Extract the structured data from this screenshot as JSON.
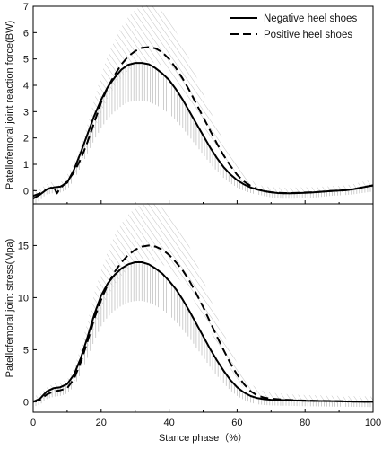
{
  "chart_data": [
    {
      "type": "line",
      "panel": "top",
      "ylabel": "Patellofemoral joint reaction force(BW)",
      "xlabel": "",
      "xlim": [
        0,
        100
      ],
      "ylim": [
        -0.5,
        7
      ],
      "xticks": [
        "0",
        "20",
        "40",
        "60",
        "80",
        "100"
      ],
      "yticks": [
        "0",
        "1",
        "2",
        "3",
        "4",
        "5",
        "6",
        "7"
      ],
      "legend": {
        "placement": "top-right"
      },
      "series": [
        {
          "name": "Negative heel shoes",
          "style": "solid",
          "x": [
            0,
            2,
            4,
            6,
            8,
            10,
            12,
            14,
            16,
            18,
            20,
            22,
            24,
            26,
            28,
            30,
            32,
            34,
            36,
            38,
            40,
            42,
            44,
            46,
            48,
            50,
            52,
            54,
            56,
            58,
            60,
            62,
            64,
            66,
            68,
            70,
            72,
            74,
            76,
            78,
            80,
            82,
            84,
            86,
            88,
            90,
            92,
            94,
            96,
            98,
            100
          ],
          "y": [
            -0.3,
            -0.15,
            0.05,
            0.12,
            0.15,
            0.3,
            0.8,
            1.45,
            2.15,
            2.85,
            3.45,
            3.95,
            4.3,
            4.6,
            4.78,
            4.85,
            4.85,
            4.8,
            4.65,
            4.45,
            4.2,
            3.85,
            3.45,
            3.0,
            2.55,
            2.1,
            1.65,
            1.25,
            0.9,
            0.62,
            0.4,
            0.24,
            0.12,
            0.04,
            -0.02,
            -0.06,
            -0.09,
            -0.1,
            -0.1,
            -0.09,
            -0.08,
            -0.07,
            -0.05,
            -0.03,
            -0.01,
            0.0,
            0.02,
            0.05,
            0.1,
            0.15,
            0.2
          ]
        },
        {
          "name": "Positive heel shoes",
          "style": "dashed",
          "x": [
            0,
            2,
            4,
            6,
            7,
            8,
            10,
            12,
            14,
            16,
            18,
            20,
            22,
            24,
            26,
            28,
            30,
            32,
            34,
            36,
            38,
            40,
            42,
            44,
            46,
            48,
            50,
            52,
            54,
            56,
            58,
            60,
            62,
            64,
            66,
            68,
            70,
            72,
            74,
            76,
            78,
            80,
            82,
            84,
            86,
            88,
            90,
            92,
            94,
            96,
            98,
            100
          ],
          "y": [
            -0.2,
            -0.1,
            0.05,
            0.15,
            -0.1,
            0.1,
            0.35,
            0.7,
            1.2,
            1.85,
            2.6,
            3.35,
            3.95,
            4.4,
            4.8,
            5.1,
            5.3,
            5.42,
            5.45,
            5.4,
            5.25,
            5.0,
            4.65,
            4.25,
            3.8,
            3.3,
            2.8,
            2.3,
            1.8,
            1.35,
            0.95,
            0.6,
            0.35,
            0.18,
            0.05,
            -0.02,
            -0.06,
            -0.08,
            -0.09,
            -0.09,
            -0.08,
            -0.07,
            -0.06,
            -0.05,
            -0.03,
            -0.01,
            0.0,
            0.02,
            0.05,
            0.1,
            0.15,
            0.2
          ]
        }
      ]
    },
    {
      "type": "line",
      "panel": "bottom",
      "ylabel": "Patellofemoral joint stress(Mpa)",
      "xlabel": "Stance phase（%）",
      "xlim": [
        0,
        100
      ],
      "ylim": [
        -1,
        19
      ],
      "xticks": [
        "0",
        "20",
        "40",
        "60",
        "80",
        "100"
      ],
      "yticks": [
        "0",
        "5",
        "10",
        "15"
      ],
      "series": [
        {
          "name": "Negative heel shoes",
          "style": "solid",
          "x": [
            0,
            2,
            4,
            6,
            8,
            10,
            12,
            14,
            16,
            18,
            20,
            22,
            24,
            26,
            28,
            30,
            32,
            34,
            36,
            38,
            40,
            42,
            44,
            46,
            48,
            50,
            52,
            54,
            56,
            58,
            60,
            62,
            64,
            66,
            68,
            70,
            72,
            74,
            76,
            78,
            80,
            85,
            90,
            95,
            100
          ],
          "y": [
            0.0,
            0.3,
            1.0,
            1.3,
            1.4,
            1.7,
            2.6,
            4.2,
            6.2,
            8.4,
            10.2,
            11.4,
            12.2,
            12.8,
            13.2,
            13.4,
            13.4,
            13.2,
            12.8,
            12.3,
            11.6,
            10.8,
            9.8,
            8.7,
            7.5,
            6.3,
            5.1,
            4.0,
            3.0,
            2.1,
            1.4,
            0.9,
            0.55,
            0.35,
            0.25,
            0.2,
            0.18,
            0.16,
            0.14,
            0.12,
            0.1,
            0.08,
            0.05,
            0.02,
            0.0
          ]
        },
        {
          "name": "Positive heel shoes",
          "style": "dashed",
          "x": [
            0,
            2,
            4,
            6,
            8,
            10,
            12,
            14,
            16,
            18,
            20,
            22,
            24,
            26,
            28,
            30,
            32,
            34,
            36,
            38,
            40,
            42,
            44,
            46,
            48,
            50,
            52,
            54,
            56,
            58,
            60,
            62,
            64,
            66,
            68,
            70,
            72,
            74,
            76,
            78,
            80,
            85,
            90,
            95,
            100
          ],
          "y": [
            0.0,
            0.2,
            0.7,
            1.0,
            1.1,
            1.3,
            2.2,
            3.8,
            5.8,
            8.0,
            9.8,
            11.3,
            12.5,
            13.4,
            14.1,
            14.6,
            14.9,
            15.0,
            14.9,
            14.6,
            14.1,
            13.4,
            12.6,
            11.6,
            10.4,
            9.1,
            7.7,
            6.3,
            5.0,
            3.7,
            2.6,
            1.7,
            1.0,
            0.6,
            0.4,
            0.3,
            0.25,
            0.2,
            0.17,
            0.14,
            0.12,
            0.09,
            0.06,
            0.03,
            0.0
          ]
        }
      ]
    }
  ]
}
